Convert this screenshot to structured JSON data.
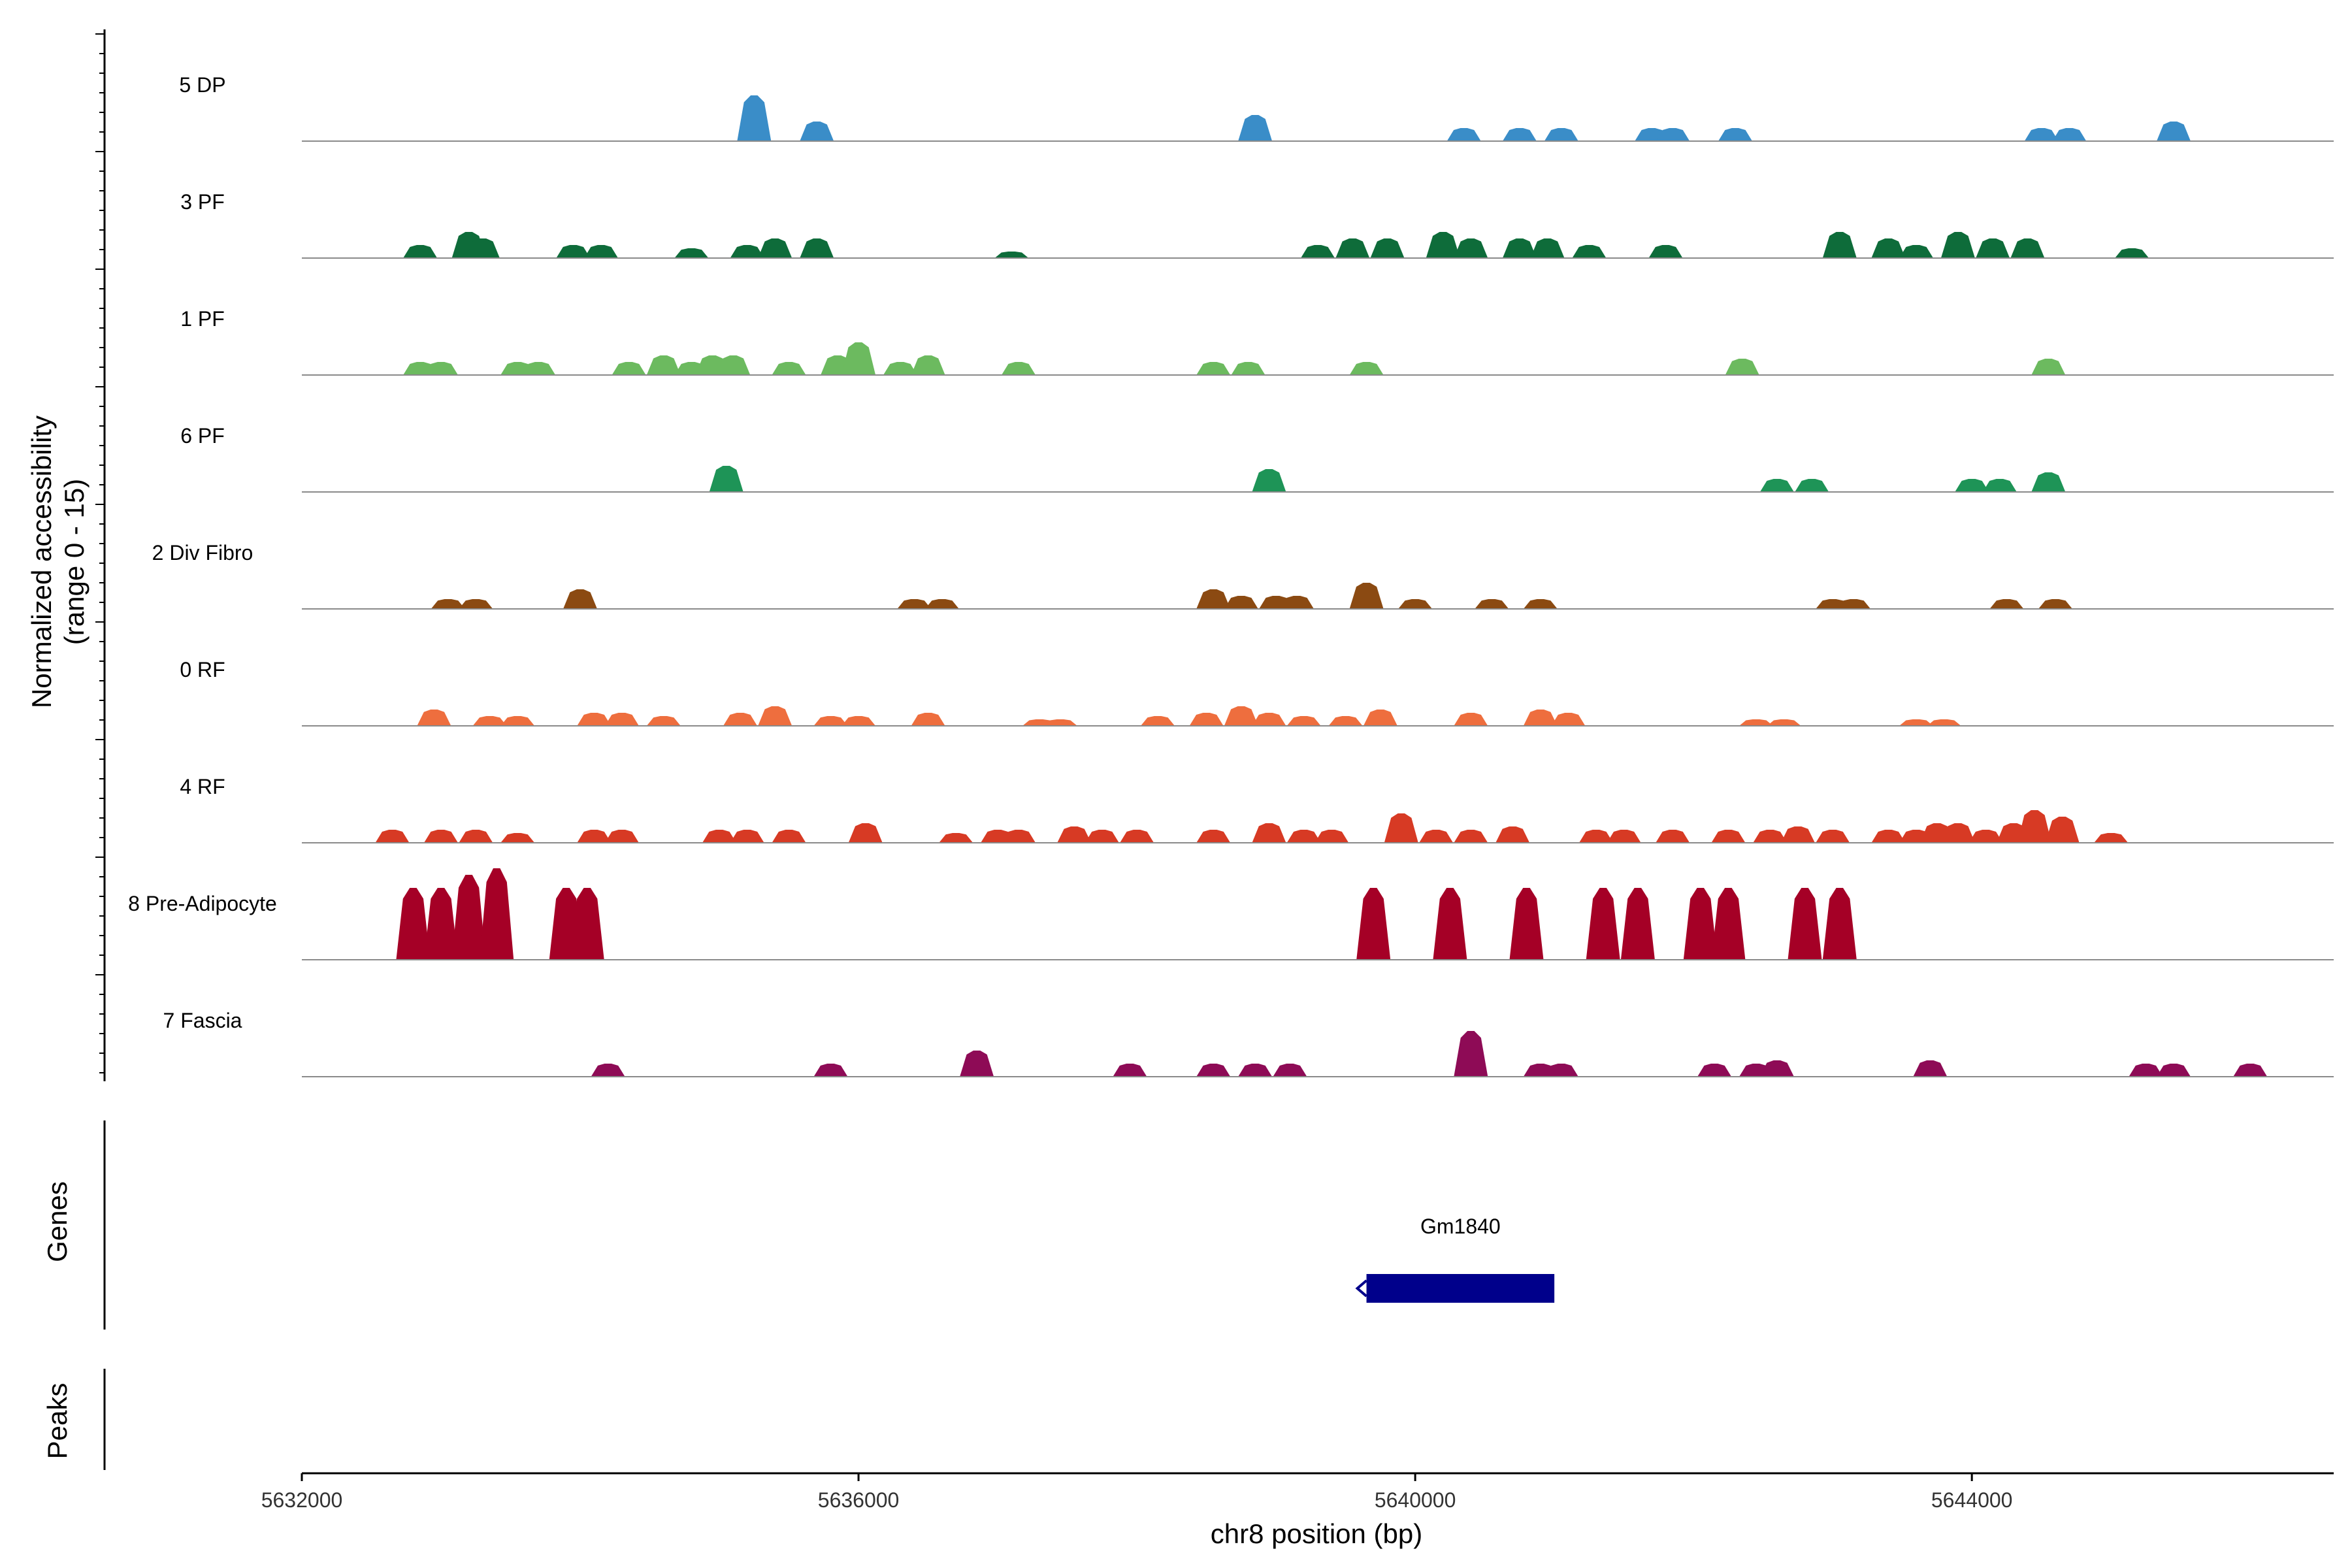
{
  "chart_data": {
    "type": "area",
    "region": {
      "chromosome": "chr8",
      "start": 5632000,
      "end": 5646600
    },
    "ylabel_line1": "Normalized accessibility",
    "ylabel_line2": "(range 0 - 15)",
    "xlabel": "chr8 position (bp)",
    "ylim": [
      0,
      15
    ],
    "x_ticks": [
      {
        "value": 5632000,
        "label": "5632000"
      },
      {
        "value": 5636000,
        "label": "5636000"
      },
      {
        "value": 5640000,
        "label": "5640000"
      },
      {
        "value": 5644000,
        "label": "5644000"
      }
    ],
    "series": [
      {
        "name": "5 DP",
        "color": "#3A8DC8",
        "peaks": [
          [
            5635250,
            7
          ],
          [
            5635700,
            3
          ],
          [
            5638850,
            4
          ],
          [
            5640350,
            2
          ],
          [
            5640750,
            2
          ],
          [
            5641050,
            2
          ],
          [
            5641700,
            2
          ],
          [
            5641850,
            2
          ],
          [
            5642300,
            2
          ],
          [
            5644500,
            2
          ],
          [
            5644700,
            2
          ],
          [
            5645450,
            3
          ]
        ]
      },
      {
        "name": "3 PF",
        "color": "#0E6C3A",
        "peaks": [
          [
            5632850,
            2
          ],
          [
            5633200,
            4
          ],
          [
            5633300,
            3
          ],
          [
            5633950,
            2
          ],
          [
            5634150,
            2
          ],
          [
            5634800,
            1.5
          ],
          [
            5635200,
            2
          ],
          [
            5635400,
            3
          ],
          [
            5635700,
            3
          ],
          [
            5637100,
            1
          ],
          [
            5639300,
            2
          ],
          [
            5639550,
            3
          ],
          [
            5639800,
            3
          ],
          [
            5640200,
            4
          ],
          [
            5640400,
            3
          ],
          [
            5640750,
            3
          ],
          [
            5640950,
            3
          ],
          [
            5641250,
            2
          ],
          [
            5641800,
            2
          ],
          [
            5643050,
            4
          ],
          [
            5643400,
            3
          ],
          [
            5643600,
            2
          ],
          [
            5643900,
            4
          ],
          [
            5644150,
            3
          ],
          [
            5644400,
            3
          ],
          [
            5645150,
            1.5
          ]
        ]
      },
      {
        "name": "1 PF",
        "color": "#6CBA5F",
        "peaks": [
          [
            5632850,
            2
          ],
          [
            5633000,
            2
          ],
          [
            5633550,
            2
          ],
          [
            5633700,
            2
          ],
          [
            5634350,
            2
          ],
          [
            5634600,
            3
          ],
          [
            5634800,
            2
          ],
          [
            5634950,
            3
          ],
          [
            5635100,
            3
          ],
          [
            5635500,
            2
          ],
          [
            5635850,
            3
          ],
          [
            5636000,
            5
          ],
          [
            5636300,
            2
          ],
          [
            5636500,
            3
          ],
          [
            5637150,
            2
          ],
          [
            5638550,
            2
          ],
          [
            5638800,
            2
          ],
          [
            5639650,
            2
          ],
          [
            5642350,
            2.5
          ],
          [
            5644550,
            2.5
          ]
        ]
      },
      {
        "name": "6 PF",
        "color": "#1E9457",
        "peaks": [
          [
            5635050,
            4
          ],
          [
            5638950,
            3.5
          ],
          [
            5642600,
            2
          ],
          [
            5642850,
            2
          ],
          [
            5644000,
            2
          ],
          [
            5644200,
            2
          ],
          [
            5644550,
            3
          ]
        ]
      },
      {
        "name": "2 Div Fibro",
        "color": "#8B4A12",
        "peaks": [
          [
            5633050,
            1.5
          ],
          [
            5633250,
            1.5
          ],
          [
            5634000,
            3
          ],
          [
            5636400,
            1.5
          ],
          [
            5636600,
            1.5
          ],
          [
            5638550,
            3
          ],
          [
            5638750,
            2
          ],
          [
            5639000,
            2
          ],
          [
            5639150,
            2
          ],
          [
            5639650,
            4
          ],
          [
            5640000,
            1.5
          ],
          [
            5640550,
            1.5
          ],
          [
            5640900,
            1.5
          ],
          [
            5643000,
            1.5
          ],
          [
            5643150,
            1.5
          ],
          [
            5644250,
            1.5
          ],
          [
            5644600,
            1.5
          ]
        ]
      },
      {
        "name": "0 RF",
        "color": "#EE6E3E",
        "peaks": [
          [
            5632950,
            2.5
          ],
          [
            5633350,
            1.5
          ],
          [
            5633550,
            1.5
          ],
          [
            5634100,
            2
          ],
          [
            5634300,
            2
          ],
          [
            5634600,
            1.5
          ],
          [
            5635150,
            2
          ],
          [
            5635400,
            3
          ],
          [
            5635800,
            1.5
          ],
          [
            5636000,
            1.5
          ],
          [
            5636500,
            2
          ],
          [
            5637300,
            1
          ],
          [
            5637450,
            1
          ],
          [
            5638150,
            1.5
          ],
          [
            5638500,
            2
          ],
          [
            5638750,
            3
          ],
          [
            5638950,
            2
          ],
          [
            5639200,
            1.5
          ],
          [
            5639500,
            1.5
          ],
          [
            5639750,
            2.5
          ],
          [
            5640400,
            2
          ],
          [
            5640900,
            2.5
          ],
          [
            5641100,
            2
          ],
          [
            5642450,
            1
          ],
          [
            5642650,
            1
          ],
          [
            5643600,
            1
          ],
          [
            5643800,
            1
          ]
        ]
      },
      {
        "name": "4 RF",
        "color": "#D73A24",
        "peaks": [
          [
            5632650,
            2
          ],
          [
            5633000,
            2
          ],
          [
            5633250,
            2
          ],
          [
            5633550,
            1.5
          ],
          [
            5634100,
            2
          ],
          [
            5634300,
            2
          ],
          [
            5635000,
            2
          ],
          [
            5635200,
            2
          ],
          [
            5635500,
            2
          ],
          [
            5636050,
            3
          ],
          [
            5636700,
            1.5
          ],
          [
            5637000,
            2
          ],
          [
            5637150,
            2
          ],
          [
            5637550,
            2.5
          ],
          [
            5637750,
            2
          ],
          [
            5638000,
            2
          ],
          [
            5638550,
            2
          ],
          [
            5638950,
            3
          ],
          [
            5639200,
            2
          ],
          [
            5639400,
            2
          ],
          [
            5639900,
            4.5
          ],
          [
            5640150,
            2
          ],
          [
            5640400,
            2
          ],
          [
            5640700,
            2.5
          ],
          [
            5641300,
            2
          ],
          [
            5641500,
            2
          ],
          [
            5641850,
            2
          ],
          [
            5642250,
            2
          ],
          [
            5642550,
            2
          ],
          [
            5642750,
            2.5
          ],
          [
            5643000,
            2
          ],
          [
            5643400,
            2
          ],
          [
            5643600,
            2
          ],
          [
            5643750,
            3
          ],
          [
            5643900,
            3
          ],
          [
            5644100,
            2
          ],
          [
            5644300,
            3
          ],
          [
            5644450,
            5
          ],
          [
            5644650,
            4
          ],
          [
            5645000,
            1.5
          ]
        ]
      },
      {
        "name": "8 Pre-Adipocyte",
        "color": "#A50026",
        "peaks": [
          [
            5632800,
            11
          ],
          [
            5633000,
            11
          ],
          [
            5633200,
            13
          ],
          [
            5633400,
            14
          ],
          [
            5633900,
            11
          ],
          [
            5634050,
            11
          ],
          [
            5639700,
            11
          ],
          [
            5640250,
            11
          ],
          [
            5640800,
            11
          ],
          [
            5641350,
            11
          ],
          [
            5641600,
            11
          ],
          [
            5642050,
            11
          ],
          [
            5642250,
            11
          ],
          [
            5642800,
            11
          ],
          [
            5643050,
            11
          ]
        ]
      },
      {
        "name": "7 Fascia",
        "color": "#8E0B56",
        "peaks": [
          [
            5634200,
            2
          ],
          [
            5635800,
            2
          ],
          [
            5636850,
            4
          ],
          [
            5637950,
            2
          ],
          [
            5638550,
            2
          ],
          [
            5638850,
            2
          ],
          [
            5639100,
            2
          ],
          [
            5640400,
            7
          ],
          [
            5640900,
            2
          ],
          [
            5641050,
            2
          ],
          [
            5642150,
            2
          ],
          [
            5642450,
            2
          ],
          [
            5642600,
            2.5
          ],
          [
            5643700,
            2.5
          ],
          [
            5645250,
            2
          ],
          [
            5645450,
            2
          ],
          [
            5646000,
            2
          ]
        ]
      }
    ],
    "genes": [
      {
        "name": "Gm1840",
        "start": 5639650,
        "end": 5641000,
        "strand": "-"
      }
    ],
    "gene_track_title": "Genes",
    "peak_track_title": "Peaks"
  }
}
